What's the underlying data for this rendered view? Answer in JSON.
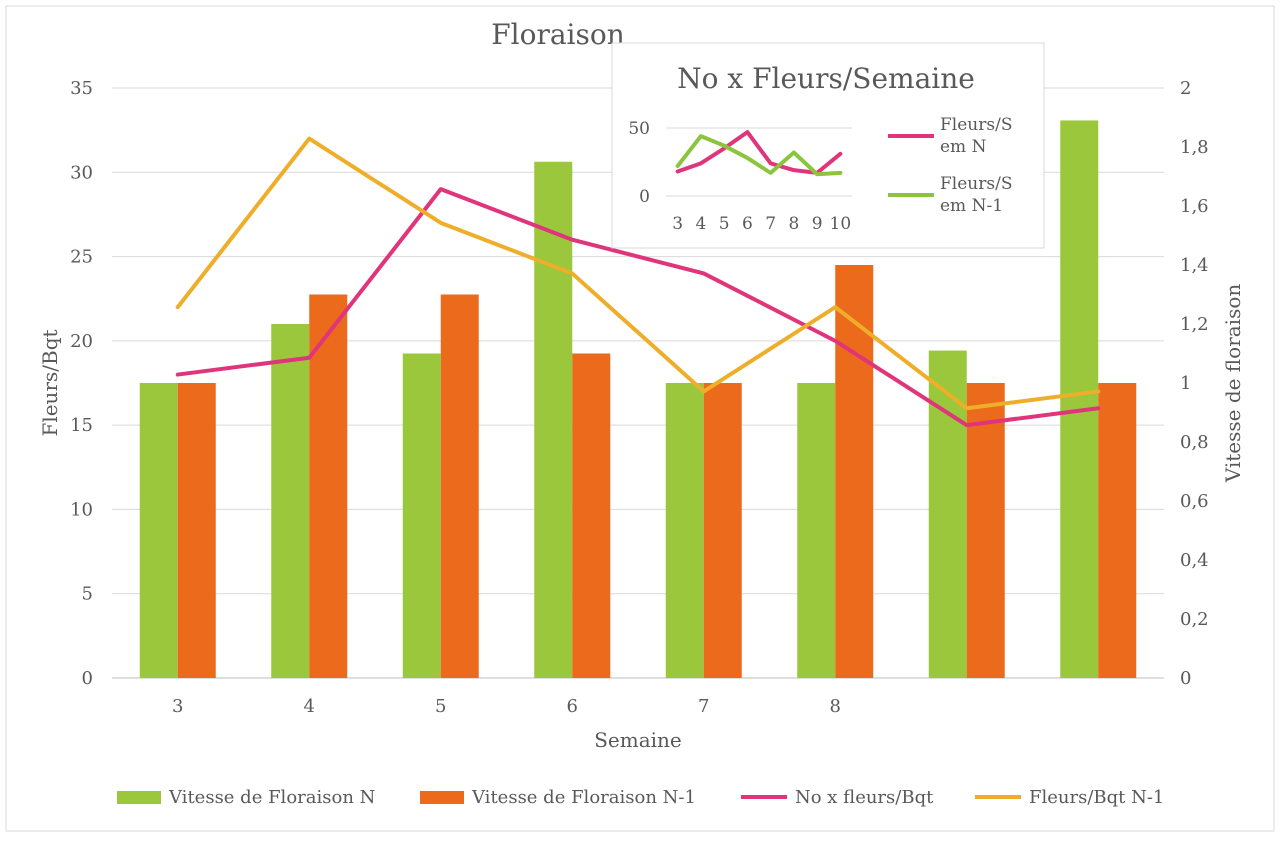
{
  "chart_data": [
    {
      "type": "bar+line",
      "title": "Floraison",
      "xlabel": "Semaine",
      "ylabel_left": "Fleurs/Bqt",
      "ylabel_right": "Vitesse de floraison",
      "categories": [
        "3",
        "4",
        "5",
        "6",
        "7",
        "8",
        "",
        ""
      ],
      "y_left_range": [
        0,
        35
      ],
      "y_left_ticks": [
        "0",
        "5",
        "10",
        "15",
        "20",
        "25",
        "30",
        "35"
      ],
      "y_right_range": [
        0,
        2
      ],
      "y_right_ticks": [
        "0",
        "0,2",
        "0,4",
        "0,6",
        "0,8",
        "1",
        "1,2",
        "1,4",
        "1,6",
        "1,8",
        "2"
      ],
      "series": [
        {
          "name": "Vitesse de Floraison N",
          "kind": "bar",
          "axis": "right",
          "color": "#9ac73c",
          "values": [
            1.0,
            1.2,
            1.1,
            1.75,
            1.0,
            1.0,
            1.11,
            1.89
          ]
        },
        {
          "name": "Vitesse de Floraison N-1",
          "kind": "bar",
          "axis": "right",
          "color": "#ec6a1c",
          "values": [
            1.0,
            1.3,
            1.3,
            1.1,
            1.0,
            1.4,
            1.0,
            1.0
          ]
        },
        {
          "name": "No x fleurs/Bqt",
          "kind": "line",
          "axis": "left",
          "color": "#e0357a",
          "values": [
            18,
            19,
            29,
            26,
            24,
            20,
            15,
            16
          ]
        },
        {
          "name": "Fleurs/Bqt N-1",
          "kind": "line",
          "axis": "left",
          "color": "#efae2a",
          "values": [
            22,
            32,
            27,
            24,
            17,
            22,
            16,
            17
          ]
        }
      ],
      "legend_position": "bottom"
    },
    {
      "type": "line",
      "title": "No x Fleurs/Semaine",
      "categories": [
        "3",
        "4",
        "5",
        "6",
        "7",
        "8",
        "9",
        "10"
      ],
      "y_range": [
        0,
        50
      ],
      "y_ticks": [
        "0",
        "50"
      ],
      "series": [
        {
          "name_lines": [
            "Fleurs/S",
            "em N"
          ],
          "color": "#e0357a",
          "values": [
            18,
            24,
            35,
            47,
            24,
            19,
            17,
            31
          ]
        },
        {
          "name_lines": [
            "Fleurs/S",
            "em N-1"
          ],
          "color": "#8bc53f",
          "values": [
            22,
            44,
            37,
            28,
            17,
            32,
            16,
            17
          ]
        }
      ],
      "legend_position": "right"
    }
  ]
}
